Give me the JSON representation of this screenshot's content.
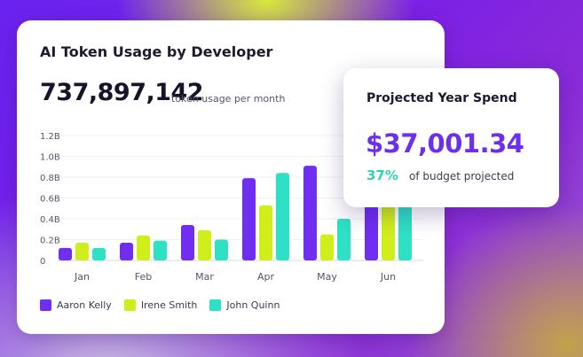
{
  "card": {
    "title": "AI Token Usage by Developer",
    "total": "737,897,142",
    "total_label": "token usage per month"
  },
  "projection": {
    "title": "Projected Year Spend",
    "amount": "$37,001.34",
    "percent": "37%",
    "percent_label": "of budget projected"
  },
  "colors": {
    "aaron": "#6f2ef2",
    "irene": "#cfee1a",
    "john": "#2ee0c4",
    "accent": "#6c2ff0",
    "teal_text": "#2ed3b7"
  },
  "chart_data": {
    "type": "bar",
    "categories": [
      "Jan",
      "Feb",
      "Mar",
      "Apr",
      "May",
      "Jun"
    ],
    "ytick_labels": [
      "0",
      "0.2B",
      "0.4B",
      "0.6B",
      "0.8B",
      "1.0B",
      "1.2B"
    ],
    "yticks": [
      0,
      0.2,
      0.4,
      0.6,
      0.8,
      1.0,
      1.2
    ],
    "ylim": [
      0,
      1.2
    ],
    "grid": true,
    "legend": "bottom-left",
    "series": [
      {
        "name": "Aaron Kelly",
        "color": "#6f2ef2",
        "values": [
          0.12,
          0.17,
          0.34,
          0.79,
          0.91,
          0.6
        ]
      },
      {
        "name": "Irene Smith",
        "color": "#cfee1a",
        "values": [
          0.17,
          0.24,
          0.29,
          0.53,
          0.25,
          0.55
        ]
      },
      {
        "name": "John Quinn",
        "color": "#2ee0c4",
        "values": [
          0.12,
          0.19,
          0.2,
          0.84,
          0.4,
          0.62
        ]
      }
    ]
  }
}
